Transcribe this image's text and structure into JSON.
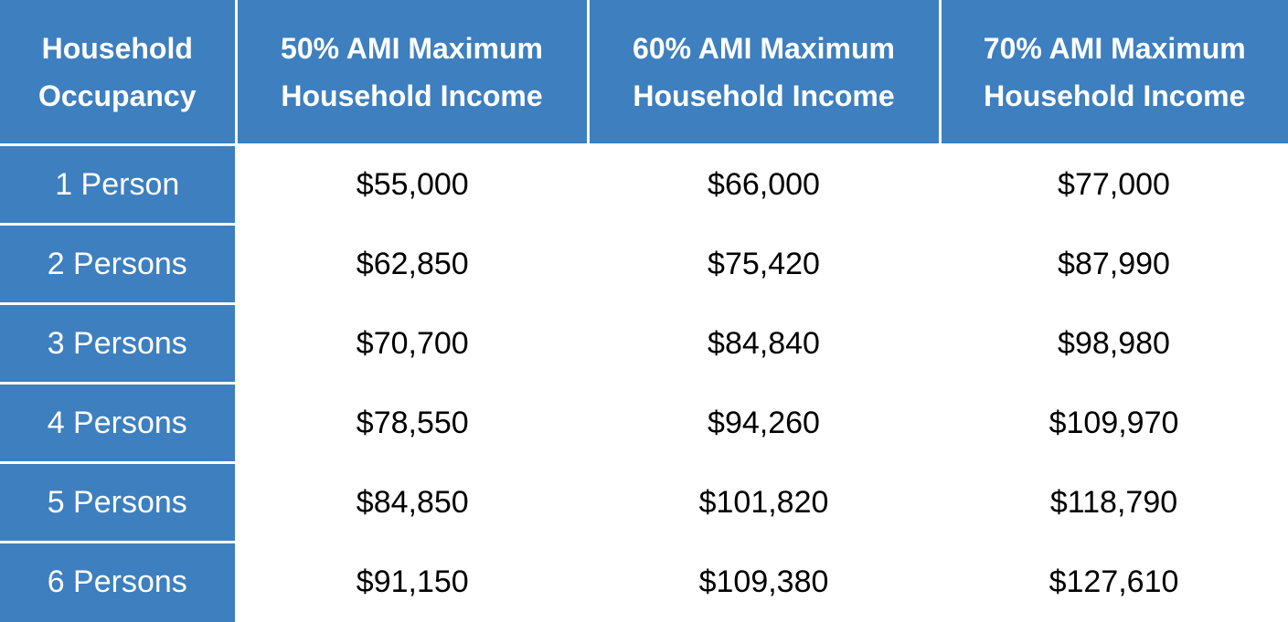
{
  "table": {
    "headers": [
      {
        "line1": "Household",
        "line2": "Occupancy"
      },
      {
        "line1": "50% AMI Maximum",
        "line2": "Household Income"
      },
      {
        "line1": "60% AMI Maximum",
        "line2": "Household Income"
      },
      {
        "line1": "70% AMI Maximum",
        "line2": "Household Income"
      }
    ],
    "rows": [
      {
        "occupancy": "1 Person",
        "ami50": "$55,000",
        "ami60": "$66,000",
        "ami70": "$77,000"
      },
      {
        "occupancy": "2 Persons",
        "ami50": "$62,850",
        "ami60": "$75,420",
        "ami70": "$87,990"
      },
      {
        "occupancy": "3 Persons",
        "ami50": "$70,700",
        "ami60": "$84,840",
        "ami70": "$98,980"
      },
      {
        "occupancy": "4 Persons",
        "ami50": "$78,550",
        "ami60": "$94,260",
        "ami70": "$109,970"
      },
      {
        "occupancy": "5 Persons",
        "ami50": "$84,850",
        "ami60": "$101,820",
        "ami70": "$118,790"
      },
      {
        "occupancy": "6 Persons",
        "ami50": "$91,150",
        "ami60": "$109,380",
        "ami70": "$127,610"
      }
    ]
  },
  "colors": {
    "header_bg": "#3d7fbf",
    "header_text": "#ffffff",
    "body_text": "#000000",
    "divider": "#ffffff"
  }
}
